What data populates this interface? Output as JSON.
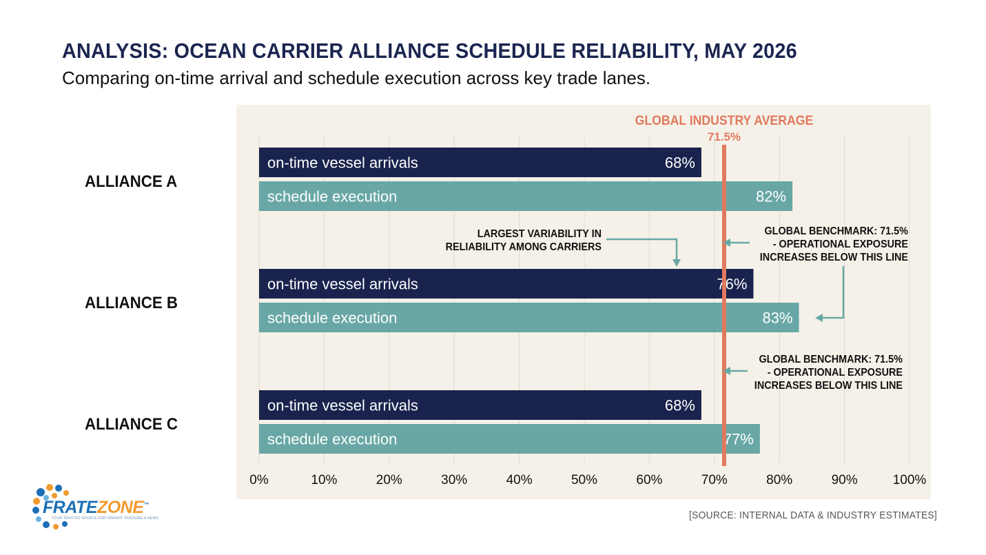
{
  "header": {
    "title": "ANALYSIS: OCEAN CARRIER ALLIANCE SCHEDULE RELIABILITY, MAY 2026",
    "subtitle": "Comparing on-time arrival and schedule execution across key trade lanes."
  },
  "chart_data": {
    "type": "bar",
    "orientation": "horizontal",
    "categories": [
      "ALLIANCE A",
      "ALLIANCE B",
      "ALLIANCE C"
    ],
    "series": [
      {
        "name": "on-time vessel arrivals",
        "values": [
          68,
          76,
          68
        ],
        "labels": [
          "68%",
          "76%",
          "68%"
        ]
      },
      {
        "name": "schedule execution",
        "values": [
          82,
          83,
          77
        ],
        "labels": [
          "82%",
          "83%",
          "77%"
        ]
      }
    ],
    "xlim": [
      0,
      100
    ],
    "x_ticks": [
      "0%",
      "10%",
      "20%",
      "30%",
      "40%",
      "50%",
      "60%",
      "70%",
      "80%",
      "90%",
      "100%"
    ],
    "grid": true,
    "reference_line": {
      "value": 71.5,
      "label": "GLOBAL INDUSTRY AVERAGE",
      "value_label": "71.5%"
    },
    "annotations": [
      {
        "lines": [
          "LARGEST VARIABILITY IN",
          "RELIABILITY AMONG CARRIERS"
        ]
      },
      {
        "lines": [
          "GLOBAL BENCHMARK: 71.5%",
          "- OPERATIONAL EXPOSURE",
          "INCREASES BELOW THIS LINE"
        ]
      },
      {
        "lines": [
          "GLOBAL BENCHMARK: 71.5%",
          "- OPERATIONAL EXPOSURE",
          "INCREASES BELOW THIS LINE"
        ]
      }
    ]
  },
  "colors": {
    "arrivals": "#19234d",
    "execution": "#68a7a5",
    "reference": "#e07a5f",
    "panel": "#f5f1e8",
    "grid": "#dedad0",
    "arrow": "#68a7a5",
    "annotation_text": "#111111"
  },
  "footer": {
    "source": "[SOURCE: INTERNAL DATA & INDUSTRY ESTIMATES]",
    "logo_text_a": "FRATE",
    "logo_text_b": "ZONE",
    "logo_tm": "™",
    "logo_tagline": "YOUR TRUSTED SOURCE FOR FREIGHT TRACKING & NEWS"
  }
}
